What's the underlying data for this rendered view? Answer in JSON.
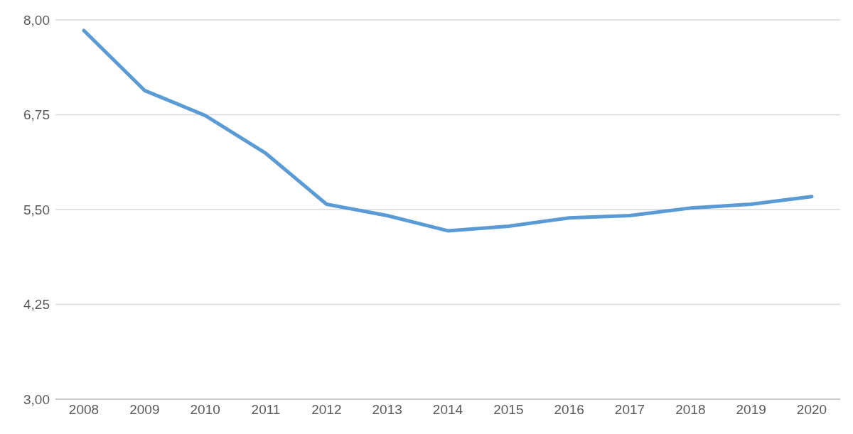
{
  "chart_data": {
    "type": "line",
    "categories": [
      "2008",
      "2009",
      "2010",
      "2011",
      "2012",
      "2013",
      "2014",
      "2015",
      "2016",
      "2017",
      "2018",
      "2019",
      "2020"
    ],
    "series": [
      {
        "color": "#5b9bd5",
        "values": [
          7.86,
          7.07,
          6.74,
          6.24,
          5.57,
          5.42,
          5.22,
          5.28,
          5.39,
          5.42,
          5.52,
          5.57,
          5.67
        ]
      }
    ],
    "ylim": [
      3,
      8
    ],
    "yticks": [
      {
        "value": 3,
        "label": "3,00"
      },
      {
        "value": 4.25,
        "label": "4,25"
      },
      {
        "value": 5.5,
        "label": "5,50"
      },
      {
        "value": 6.75,
        "label": "6,75"
      },
      {
        "value": 8,
        "label": "8,00"
      }
    ],
    "grid": "y",
    "marker": "none",
    "line_style": "solid"
  }
}
